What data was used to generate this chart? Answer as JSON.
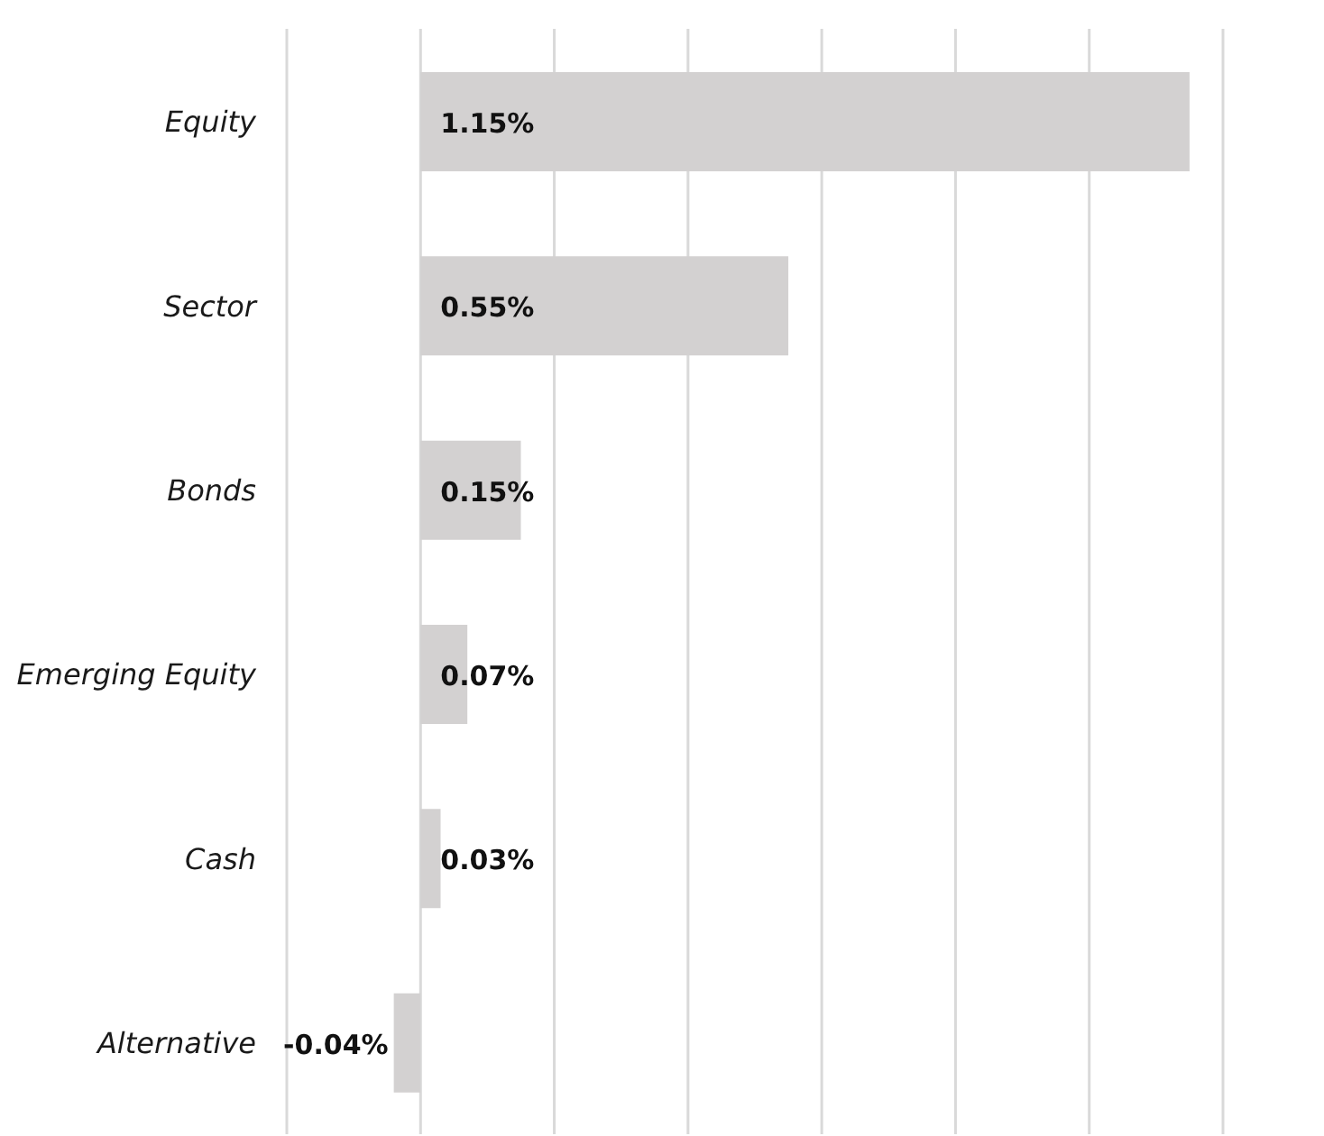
{
  "chart_data": {
    "type": "bar",
    "orientation": "horizontal",
    "categories": [
      "Equity",
      "Sector",
      "Bonds",
      "Emerging Equity",
      "Cash",
      "Alternative"
    ],
    "values": [
      1.15,
      0.55,
      0.15,
      0.07,
      0.03,
      -0.04
    ],
    "value_labels": [
      "1.15%",
      "0.55%",
      "0.15%",
      "0.07%",
      "0.03%",
      "-0.04%"
    ],
    "color": "#d3d1d1",
    "xlim": [
      -0.2,
      1.2
    ],
    "xticks": [
      {
        "value": -0.2,
        "label": null
      },
      {
        "value": 0,
        "label": null
      },
      {
        "value": 0.2,
        "label": null
      },
      {
        "value": 0.4,
        "label": null
      },
      {
        "value": 0.6,
        "label": null
      },
      {
        "value": 0.8,
        "label": null
      },
      {
        "value": 1.0,
        "label": null
      },
      {
        "value": 1.2,
        "label": null
      }
    ],
    "grid": "x",
    "tick_labels": "y"
  }
}
